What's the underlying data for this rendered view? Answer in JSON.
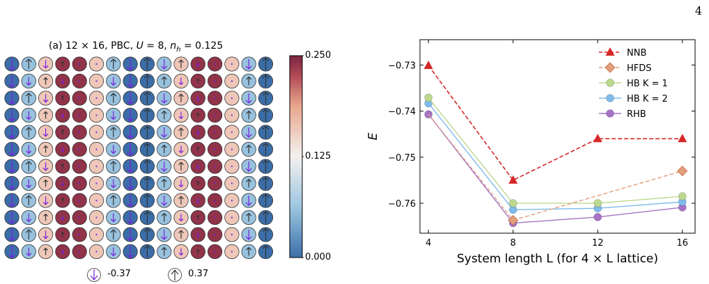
{
  "page": {
    "number": "4"
  },
  "panel_a": {
    "title": "(a) 12 × 16, PBC, U = 8, n_h = 0.125",
    "title_parts": {
      "prefix": "(a) 12 × 16, PBC, ",
      "u": "U",
      "u_val": " = 8, ",
      "nh": "n",
      "nh_sub": "h",
      "nh_val": " = 0.125"
    },
    "colorbar": {
      "min": 0.0,
      "max": 0.25,
      "ticks": [
        "0.250",
        "0.125",
        "0.000"
      ],
      "colors": [
        "#3b6ea8",
        "#9cc6e0",
        "#f4f1ee",
        "#e9a68d",
        "#b24a57",
        "#7b2440"
      ]
    },
    "spin_legend": [
      {
        "label": "-0.37",
        "direction": "down"
      },
      {
        "label": "0.37",
        "direction": "up"
      }
    ],
    "grid": {
      "rows": 12,
      "cols": 16,
      "column_hole_density": [
        0.0,
        0.06,
        0.16,
        0.24,
        0.24,
        0.16,
        0.06,
        0.0,
        0.0,
        0.06,
        0.16,
        0.24,
        0.24,
        0.16,
        0.06,
        0.0
      ],
      "column_spin": [
        -0.37,
        0.3,
        -0.25,
        0.15,
        0.0,
        -0.05,
        0.3,
        -0.37,
        0.37,
        -0.3,
        0.25,
        -0.15,
        0.0,
        0.05,
        -0.3,
        0.37
      ],
      "row_parity_flip": true,
      "up_arrow_color": "#333333",
      "down_arrow_color": "#7a1fe0"
    }
  },
  "chart_data": {
    "type": "line",
    "x": [
      4,
      8,
      12,
      16
    ],
    "xlabel": "System length L (for 4 × L lattice)",
    "ylabel": "E",
    "xlim": [
      3.6,
      16.6
    ],
    "ylim": [
      -0.7665,
      -0.7245
    ],
    "xticks": [
      4,
      8,
      12,
      16
    ],
    "yticks": [
      -0.73,
      -0.74,
      -0.75,
      -0.76
    ],
    "ytick_labels": [
      "−0.73",
      "−0.74",
      "−0.75",
      "−0.76"
    ],
    "legend_position": "upper-right",
    "series": [
      {
        "name": "NNB",
        "color": "#d62728",
        "marker": "triangle",
        "dashed": true,
        "x": [
          4,
          8,
          12,
          16
        ],
        "values": [
          -0.7301,
          -0.755,
          -0.746,
          -0.746
        ]
      },
      {
        "name": "HFDS",
        "color": "#e29e7a",
        "marker": "diamond",
        "dashed": true,
        "x": [
          8,
          16
        ],
        "values": [
          -0.7637,
          -0.753
        ]
      },
      {
        "name": "HB K = 1",
        "color": "#bcd98e",
        "marker": "circle",
        "dashed": false,
        "x": [
          4,
          8,
          12,
          16
        ],
        "values": [
          -0.7371,
          -0.76,
          -0.76,
          -0.7585
        ]
      },
      {
        "name": "HB K = 2",
        "color": "#7fbbeb",
        "marker": "circle",
        "dashed": false,
        "x": [
          4,
          8,
          12,
          16
        ],
        "values": [
          -0.7383,
          -0.7614,
          -0.7611,
          -0.7597
        ]
      },
      {
        "name": "RHB",
        "color": "#a673c7",
        "marker": "circle",
        "dashed": false,
        "x": [
          4,
          8,
          12,
          16
        ],
        "values": [
          -0.7407,
          -0.7643,
          -0.763,
          -0.7609
        ]
      }
    ],
    "hfds_extension_from": {
      "x": 4,
      "y": -0.7407
    }
  }
}
